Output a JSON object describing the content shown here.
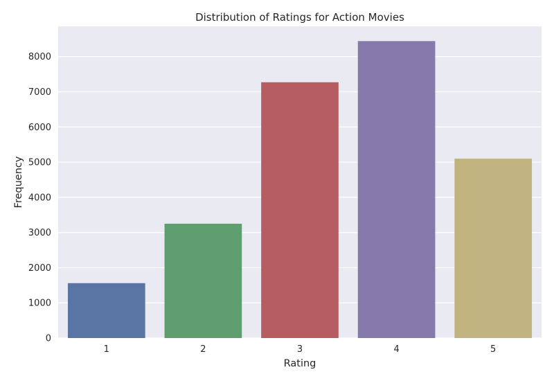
{
  "chart_data": {
    "type": "bar",
    "title": "Distribution of Ratings for Action Movies",
    "xlabel": "Rating",
    "ylabel": "Frequency",
    "categories": [
      "1",
      "2",
      "3",
      "4",
      "5"
    ],
    "values": [
      1560,
      3250,
      7270,
      8440,
      5100
    ],
    "colors": [
      "#5975a4",
      "#5f9e6e",
      "#b55d60",
      "#857aab",
      "#c1b37f"
    ],
    "ylim": [
      0,
      8860
    ],
    "yticks": [
      0,
      1000,
      2000,
      3000,
      4000,
      5000,
      6000,
      7000,
      8000
    ],
    "grid": true,
    "plot_background": "#eaeaf2"
  }
}
